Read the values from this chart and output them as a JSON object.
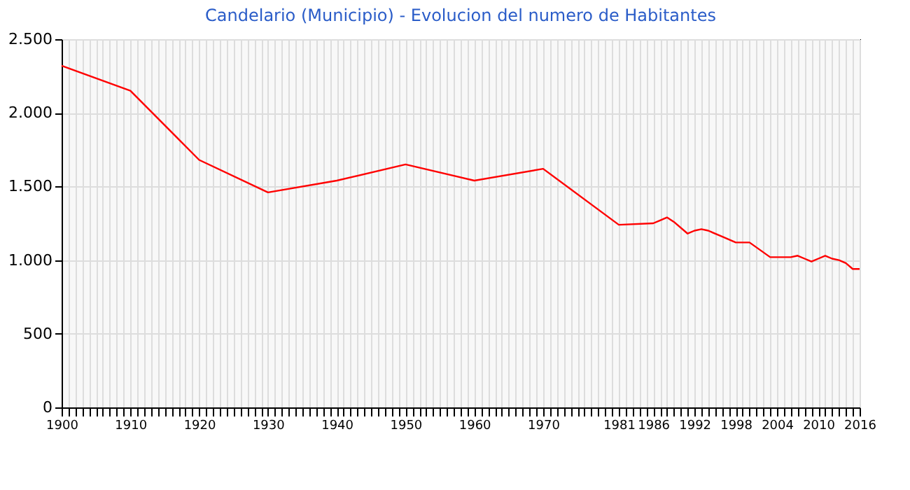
{
  "chart_data": {
    "type": "line",
    "title": "Candelario (Municipio) - Evolucion del numero de Habitantes",
    "x": [
      1900,
      1910,
      1920,
      1930,
      1940,
      1950,
      1960,
      1970,
      1981,
      1986,
      1987,
      1988,
      1989,
      1991,
      1992,
      1993,
      1994,
      1996,
      1998,
      2000,
      2003,
      2004,
      2006,
      2007,
      2008,
      2009,
      2010,
      2011,
      2012,
      2013,
      2014,
      2015,
      2016
    ],
    "series": [
      {
        "color": "#ff0000",
        "values": [
          2320,
          2150,
          1680,
          1460,
          1540,
          1650,
          1540,
          1620,
          1240,
          1250,
          1270,
          1290,
          1260,
          1180,
          1200,
          1210,
          1200,
          1160,
          1120,
          1120,
          1020,
          1020,
          1020,
          1030,
          1010,
          990,
          1010,
          1030,
          1010,
          1000,
          980,
          940,
          940
        ]
      }
    ],
    "xlim": [
      1900,
      2016
    ],
    "xticks": [
      1900,
      {
        "value": 1901,
        "label": null
      },
      {
        "value": 1902,
        "label": null
      },
      {
        "value": 1903,
        "label": null
      },
      {
        "value": 1904,
        "label": null
      },
      {
        "value": 1905,
        "label": null
      },
      {
        "value": 1906,
        "label": null
      },
      {
        "value": 1907,
        "label": null
      },
      {
        "value": 1908,
        "label": null
      },
      {
        "value": 1909,
        "label": null
      },
      1910,
      {
        "value": 1911,
        "label": null
      },
      {
        "value": 1912,
        "label": null
      },
      {
        "value": 1913,
        "label": null
      },
      {
        "value": 1914,
        "label": null
      },
      {
        "value": 1915,
        "label": null
      },
      {
        "value": 1916,
        "label": null
      },
      {
        "value": 1917,
        "label": null
      },
      {
        "value": 1918,
        "label": null
      },
      {
        "value": 1919,
        "label": null
      },
      1920,
      {
        "value": 1921,
        "label": null
      },
      {
        "value": 1922,
        "label": null
      },
      {
        "value": 1923,
        "label": null
      },
      {
        "value": 1924,
        "label": null
      },
      {
        "value": 1925,
        "label": null
      },
      {
        "value": 1926,
        "label": null
      },
      {
        "value": 1927,
        "label": null
      },
      {
        "value": 1928,
        "label": null
      },
      {
        "value": 1929,
        "label": null
      },
      1930,
      {
        "value": 1931,
        "label": null
      },
      {
        "value": 1932,
        "label": null
      },
      {
        "value": 1933,
        "label": null
      },
      {
        "value": 1934,
        "label": null
      },
      {
        "value": 1935,
        "label": null
      },
      {
        "value": 1936,
        "label": null
      },
      {
        "value": 1937,
        "label": null
      },
      {
        "value": 1938,
        "label": null
      },
      {
        "value": 1939,
        "label": null
      },
      1940,
      {
        "value": 1941,
        "label": null
      },
      {
        "value": 1942,
        "label": null
      },
      {
        "value": 1943,
        "label": null
      },
      {
        "value": 1944,
        "label": null
      },
      {
        "value": 1945,
        "label": null
      },
      {
        "value": 1946,
        "label": null
      },
      {
        "value": 1947,
        "label": null
      },
      {
        "value": 1948,
        "label": null
      },
      {
        "value": 1949,
        "label": null
      },
      1950,
      {
        "value": 1951,
        "label": null
      },
      {
        "value": 1952,
        "label": null
      },
      {
        "value": 1953,
        "label": null
      },
      {
        "value": 1954,
        "label": null
      },
      {
        "value": 1955,
        "label": null
      },
      {
        "value": 1956,
        "label": null
      },
      {
        "value": 1957,
        "label": null
      },
      {
        "value": 1958,
        "label": null
      },
      {
        "value": 1959,
        "label": null
      },
      1960,
      {
        "value": 1961,
        "label": null
      },
      {
        "value": 1962,
        "label": null
      },
      {
        "value": 1963,
        "label": null
      },
      {
        "value": 1964,
        "label": null
      },
      {
        "value": 1965,
        "label": null
      },
      {
        "value": 1966,
        "label": null
      },
      {
        "value": 1967,
        "label": null
      },
      {
        "value": 1968,
        "label": null
      },
      {
        "value": 1969,
        "label": null
      },
      1970,
      {
        "value": 1971,
        "label": null
      },
      {
        "value": 1972,
        "label": null
      },
      {
        "value": 1973,
        "label": null
      },
      {
        "value": 1974,
        "label": null
      },
      {
        "value": 1975,
        "label": null
      },
      {
        "value": 1976,
        "label": null
      },
      {
        "value": 1977,
        "label": null
      },
      {
        "value": 1978,
        "label": null
      },
      {
        "value": 1979,
        "label": null
      },
      {
        "value": 1980,
        "label": null
      },
      1981,
      {
        "value": 1982,
        "label": null
      },
      {
        "value": 1983,
        "label": null
      },
      {
        "value": 1984,
        "label": null
      },
      {
        "value": 1985,
        "label": null
      },
      1986,
      {
        "value": 1987,
        "label": null
      },
      {
        "value": 1988,
        "label": null
      },
      {
        "value": 1989,
        "label": null
      },
      {
        "value": 1990,
        "label": null
      },
      {
        "value": 1991,
        "label": null
      },
      1992,
      {
        "value": 1993,
        "label": null
      },
      {
        "value": 1994,
        "label": null
      },
      {
        "value": 1995,
        "label": null
      },
      {
        "value": 1996,
        "label": null
      },
      {
        "value": 1997,
        "label": null
      },
      1998,
      {
        "value": 1999,
        "label": null
      },
      {
        "value": 2000,
        "label": null
      },
      {
        "value": 2001,
        "label": null
      },
      {
        "value": 2002,
        "label": null
      },
      {
        "value": 2003,
        "label": null
      },
      2004,
      {
        "value": 2005,
        "label": null
      },
      {
        "value": 2006,
        "label": null
      },
      {
        "value": 2007,
        "label": null
      },
      {
        "value": 2008,
        "label": null
      },
      {
        "value": 2009,
        "label": null
      },
      2010,
      {
        "value": 2011,
        "label": null
      },
      {
        "value": 2012,
        "label": null
      },
      {
        "value": 2013,
        "label": null
      },
      {
        "value": 2014,
        "label": null
      },
      {
        "value": 2015,
        "label": null
      },
      2016
    ],
    "ylim": [
      0,
      2500
    ],
    "yticks": [
      0,
      500,
      {
        "value": 1000,
        "label": "1.000"
      },
      {
        "value": 1500,
        "label": "1.500"
      },
      {
        "value": 2000,
        "label": "2.000"
      },
      {
        "value": 2500,
        "label": "2.500"
      }
    ],
    "grid": true,
    "marker": "none",
    "line_style": "solid"
  }
}
